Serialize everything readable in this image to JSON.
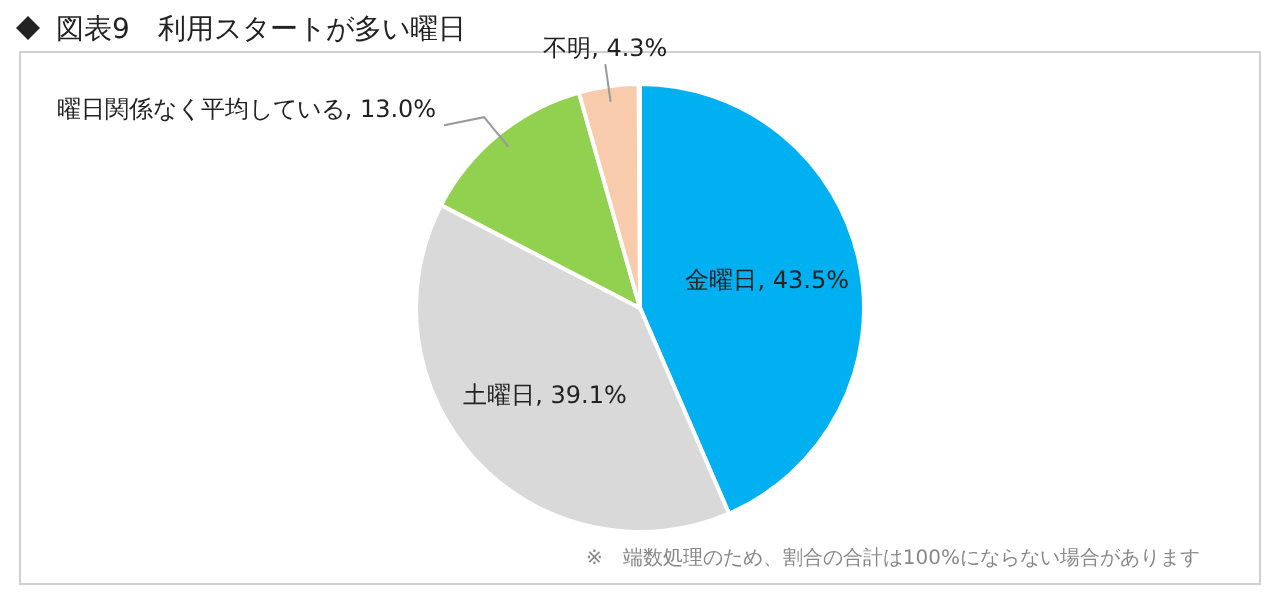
{
  "chart_data": {
    "type": "pie",
    "title": "図表9　利用スタートが多い曜日",
    "categories": [
      "金曜日",
      "土曜日",
      "曜日関係なく平均している",
      "不明"
    ],
    "values": [
      43.5,
      39.1,
      13.0,
      4.3
    ],
    "value_labels": [
      "43.5%",
      "39.1%",
      "13.0%",
      "4.3%"
    ],
    "colors": [
      "#00b0f0",
      "#d9d9d9",
      "#92d050",
      "#f8cbad"
    ],
    "annotations": [
      "※　端数処理のため、割合の合計は100%にならない場合があります"
    ]
  }
}
